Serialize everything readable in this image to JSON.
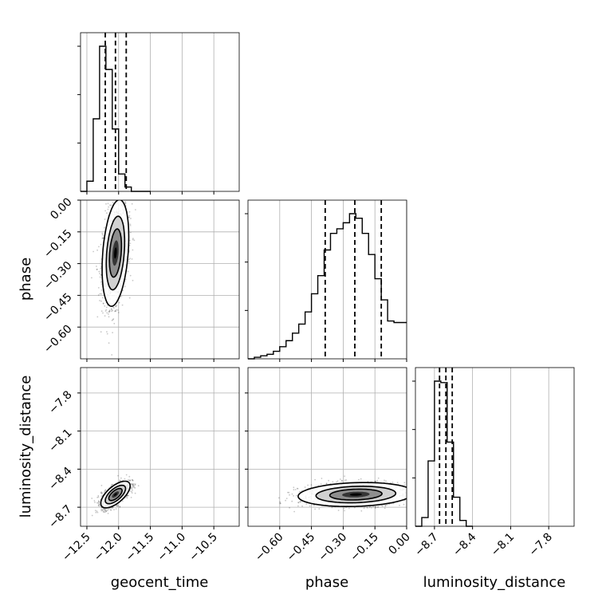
{
  "chart_data": {
    "type": "corner",
    "parameters": [
      "geocent_time",
      "phase",
      "luminosity_distance"
    ],
    "grid": true,
    "ranges": {
      "geocent_time": [
        -12.6,
        -10.1
      ],
      "phase": [
        -0.75,
        0.0
      ],
      "luminosity_distance": [
        -8.85,
        -7.6
      ]
    },
    "ticks": {
      "geocent_time": {
        "values": [
          -12.5,
          -12.0,
          -11.5,
          -11.0,
          -10.5
        ],
        "labels": [
          "−12.5",
          "−12.0",
          "−11.5",
          "−11.0",
          "−10.5"
        ]
      },
      "phase": {
        "values": [
          -0.6,
          -0.45,
          -0.3,
          -0.15,
          0.0
        ],
        "labels": [
          "−0.60",
          "−0.45",
          "−0.30",
          "−0.15",
          "0.00"
        ]
      },
      "luminosity_distance": {
        "values": [
          -8.7,
          -8.4,
          -8.1,
          -7.8
        ],
        "labels": [
          "−8.7",
          "−8.4",
          "−8.1",
          "−7.8"
        ]
      }
    },
    "marginals": [
      {
        "parameter": "geocent_time",
        "bin_edges": [
          -12.6,
          -12.5,
          -12.4,
          -12.3,
          -12.2,
          -12.1,
          -12.0,
          -11.9,
          -11.8,
          -11.7,
          -11.6,
          -11.5
        ],
        "counts": [
          0.0,
          0.07,
          0.5,
          1.0,
          0.84,
          0.43,
          0.12,
          0.03,
          0.0,
          0.0,
          0.0
        ],
        "quantiles": [
          -12.21,
          -12.05,
          -11.88
        ]
      },
      {
        "parameter": "phase",
        "bin_edges": [
          -0.75,
          -0.72,
          -0.69,
          -0.66,
          -0.63,
          -0.6,
          -0.57,
          -0.54,
          -0.51,
          -0.48,
          -0.45,
          -0.42,
          -0.39,
          -0.36,
          -0.33,
          -0.3,
          -0.27,
          -0.24,
          -0.21,
          -0.18,
          -0.15,
          -0.12,
          -0.09,
          -0.06,
          -0.03,
          0.0
        ],
        "counts": [
          0.0,
          0.01,
          0.02,
          0.03,
          0.05,
          0.08,
          0.12,
          0.17,
          0.23,
          0.31,
          0.43,
          0.55,
          0.72,
          0.83,
          0.86,
          0.9,
          0.96,
          0.93,
          0.83,
          0.69,
          0.53,
          0.39,
          0.25,
          0.24,
          0.24
        ],
        "quantiles": [
          -0.385,
          -0.245,
          -0.12
        ]
      },
      {
        "parameter": "luminosity_distance",
        "bin_edges": [
          -8.85,
          -8.8,
          -8.75,
          -8.7,
          -8.65,
          -8.6,
          -8.55,
          -8.5,
          -8.45,
          -8.4
        ],
        "counts": [
          0.0,
          0.06,
          0.45,
          1.0,
          0.99,
          0.58,
          0.2,
          0.04,
          0.0
        ],
        "quantiles": [
          -8.66,
          -8.61,
          -8.56
        ]
      }
    ],
    "scatter_panels": [
      {
        "x": "geocent_time",
        "y": "phase",
        "center": [
          -12.05,
          -0.25
        ],
        "sd": [
          0.1,
          0.12
        ],
        "corr": 0.3
      },
      {
        "x": "geocent_time",
        "y": "luminosity_distance",
        "center": [
          -12.05,
          -8.6
        ],
        "sd": [
          0.11,
          0.05
        ],
        "corr": 0.65
      },
      {
        "x": "phase",
        "y": "luminosity_distance",
        "center": [
          -0.24,
          -8.6
        ],
        "sd": [
          0.13,
          0.045
        ],
        "corr": 0.15
      }
    ]
  }
}
